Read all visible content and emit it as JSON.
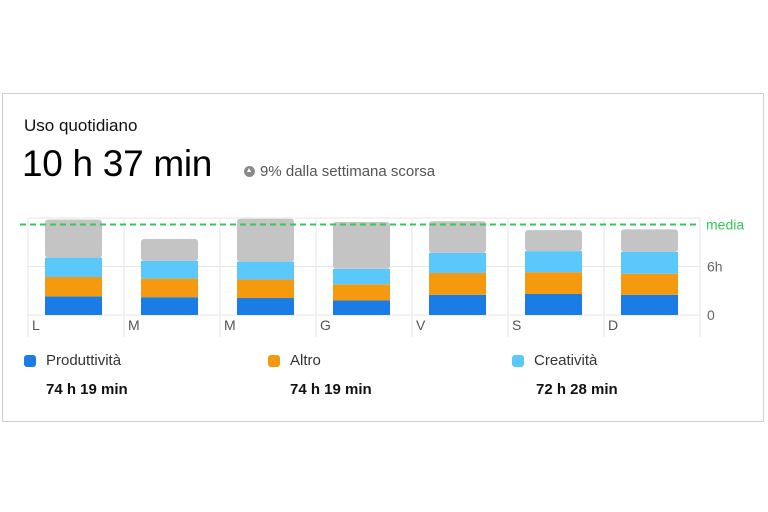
{
  "card": {
    "title": "Uso quotidiano",
    "total": "10 h 37 min",
    "delta": "9% dalla settimana scorsa",
    "delta_icon": "up-arrow-circle-icon"
  },
  "chart_data": {
    "type": "bar",
    "stacked": true,
    "categories": [
      "L",
      "M",
      "M",
      "G",
      "V",
      "S",
      "D"
    ],
    "series": [
      {
        "name": "Produttività",
        "color": "#1a7de6",
        "values": [
          2.3,
          2.2,
          2.1,
          1.8,
          2.5,
          2.6,
          2.5
        ]
      },
      {
        "name": "Altro",
        "color": "#f59a0f",
        "values": [
          2.4,
          2.3,
          2.3,
          2.0,
          2.7,
          2.7,
          2.6
        ]
      },
      {
        "name": "Creatività",
        "color": "#5ac8fa",
        "values": [
          2.4,
          2.2,
          2.2,
          1.9,
          2.5,
          2.6,
          2.7
        ]
      },
      {
        "color": "#c4c4c4",
        "values": [
          4.7,
          2.7,
          5.3,
          5.8,
          3.9,
          2.6,
          2.8
        ]
      }
    ],
    "yticks": [
      {
        "value": 0,
        "label": "0"
      },
      {
        "value": 6,
        "label": "6h"
      }
    ],
    "ylim": [
      0,
      12
    ],
    "average": {
      "value": 11.2,
      "label": "media",
      "color": "#34c759"
    },
    "grid": true
  },
  "legend": [
    {
      "label": "Produttività",
      "color": "#1a7de6",
      "value": "74 h 19 min"
    },
    {
      "label": "Altro",
      "color": "#f59a0f",
      "value": "74 h 19 min"
    },
    {
      "label": "Creatività",
      "color": "#5ac8fa",
      "value": "72 h 28 min"
    }
  ]
}
